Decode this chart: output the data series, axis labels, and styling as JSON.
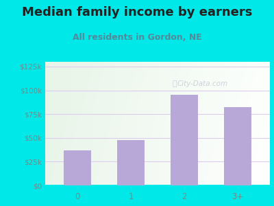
{
  "title": "Median family income by earners",
  "subtitle": "All residents in Gordon, NE",
  "categories": [
    "0",
    "1",
    "2",
    "3+"
  ],
  "values": [
    37000,
    48000,
    95000,
    82000
  ],
  "bar_color": "#b8a8d8",
  "background_color": "#00e8e8",
  "title_color": "#222222",
  "subtitle_color": "#558899",
  "axis_label_color": "#778888",
  "yticks": [
    0,
    25000,
    50000,
    75000,
    100000,
    125000
  ],
  "ytick_labels": [
    "$0",
    "$25k",
    "$50k",
    "$75k",
    "$100k",
    "$125k"
  ],
  "ylim": [
    0,
    130000
  ],
  "watermark": "City-Data.com",
  "grid_color": "#ddccee",
  "plot_bg_colors": [
    "#e8f5e0",
    "#f5fff5",
    "#ffffff",
    "#eef8ff"
  ],
  "title_fontsize": 13,
  "subtitle_fontsize": 9
}
